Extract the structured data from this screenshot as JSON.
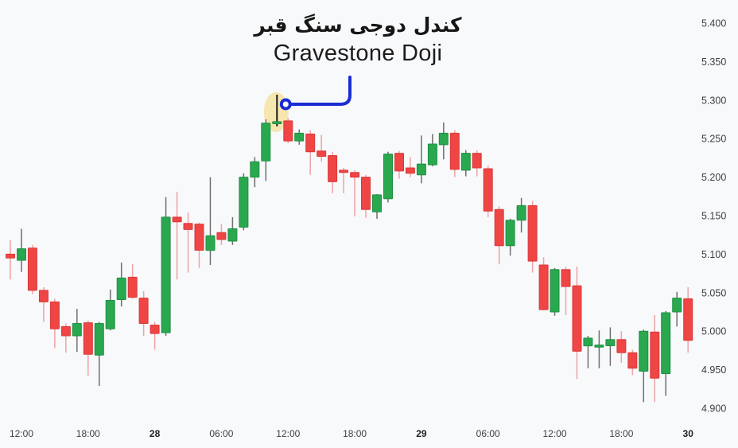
{
  "title": {
    "persian": "کندل دوجی سنگ قبر",
    "english": "Gravestone Doji"
  },
  "annotation": {
    "highlight_shape": "ellipse-highlight",
    "highlight_color": "#f5e3a6",
    "arrow_color": "#1c2cd4",
    "marker": "circle-ring"
  },
  "colors": {
    "background": "#f8f9fb",
    "up_body": "#2aa84f",
    "up_border": "#1f9041",
    "down_body": "#ef4545",
    "down_border": "#d93a3a",
    "up_wick": "#6e6e6e",
    "down_wick": "#eda3a3",
    "doji_wick": "#1a1a1a",
    "axis_text": "#3c4043",
    "axis_text_bold": "#1f1f1f"
  },
  "chart_data": {
    "type": "candlestick",
    "timeframe": "1h",
    "ylim": [
      4.9,
      5.4
    ],
    "grid": false,
    "y_axis_side": "right",
    "y_ticks": [
      "5.400",
      "5.350",
      "5.300",
      "5.250",
      "5.200",
      "5.150",
      "5.100",
      "5.050",
      "5.000",
      "4.950",
      "4.900"
    ],
    "x_ticks": [
      {
        "i": 1,
        "label": "12:00",
        "bold": false
      },
      {
        "i": 7,
        "label": "18:00",
        "bold": false
      },
      {
        "i": 13,
        "label": "28",
        "bold": true
      },
      {
        "i": 19,
        "label": "06:00",
        "bold": false
      },
      {
        "i": 25,
        "label": "12:00",
        "bold": false
      },
      {
        "i": 31,
        "label": "18:00",
        "bold": false
      },
      {
        "i": 37,
        "label": "29",
        "bold": true
      },
      {
        "i": 43,
        "label": "06:00",
        "bold": false
      },
      {
        "i": 49,
        "label": "12:00",
        "bold": false
      },
      {
        "i": 55,
        "label": "18:00",
        "bold": false
      },
      {
        "i": 61,
        "label": "30",
        "bold": true
      }
    ],
    "doji_index": 24,
    "candles_format": [
      "open",
      "high",
      "low",
      "close"
    ],
    "candles": [
      [
        5.1,
        5.118,
        5.067,
        5.095
      ],
      [
        5.092,
        5.133,
        5.077,
        5.107
      ],
      [
        5.108,
        5.112,
        5.048,
        5.053
      ],
      [
        5.053,
        5.057,
        5.012,
        5.038
      ],
      [
        5.038,
        5.042,
        4.978,
        5.003
      ],
      [
        5.006,
        5.01,
        4.972,
        4.994
      ],
      [
        4.994,
        5.029,
        4.973,
        5.01
      ],
      [
        5.011,
        5.014,
        4.942,
        4.97
      ],
      [
        4.969,
        5.012,
        4.929,
        5.01
      ],
      [
        5.003,
        5.054,
        5.001,
        5.04
      ],
      [
        5.041,
        5.089,
        5.032,
        5.069
      ],
      [
        5.07,
        5.087,
        5.042,
        5.044
      ],
      [
        5.043,
        5.052,
        4.994,
        5.01
      ],
      [
        5.008,
        5.012,
        4.976,
        4.997
      ],
      [
        4.998,
        5.174,
        4.994,
        5.148
      ],
      [
        5.148,
        5.181,
        5.067,
        5.142
      ],
      [
        5.14,
        5.154,
        5.076,
        5.132
      ],
      [
        5.139,
        5.141,
        5.082,
        5.105
      ],
      [
        5.105,
        5.2,
        5.086,
        5.124
      ],
      [
        5.128,
        5.139,
        5.112,
        5.119
      ],
      [
        5.117,
        5.148,
        5.112,
        5.133
      ],
      [
        5.135,
        5.205,
        5.131,
        5.2
      ],
      [
        5.2,
        5.226,
        5.187,
        5.22
      ],
      [
        5.221,
        5.275,
        5.195,
        5.27
      ],
      [
        5.27,
        5.307,
        5.266,
        5.272
      ],
      [
        5.273,
        5.277,
        5.244,
        5.247
      ],
      [
        5.247,
        5.262,
        5.242,
        5.257
      ],
      [
        5.256,
        5.261,
        5.203,
        5.233
      ],
      [
        5.234,
        5.255,
        5.22,
        5.227
      ],
      [
        5.228,
        5.233,
        5.179,
        5.194
      ],
      [
        5.209,
        5.212,
        5.179,
        5.206
      ],
      [
        5.206,
        5.209,
        5.149,
        5.2
      ],
      [
        5.2,
        5.203,
        5.147,
        5.158
      ],
      [
        5.155,
        5.178,
        5.146,
        5.177
      ],
      [
        5.172,
        5.233,
        5.167,
        5.23
      ],
      [
        5.231,
        5.234,
        5.198,
        5.208
      ],
      [
        5.212,
        5.226,
        5.2,
        5.205
      ],
      [
        5.203,
        5.254,
        5.192,
        5.217
      ],
      [
        5.216,
        5.256,
        5.214,
        5.243
      ],
      [
        5.242,
        5.271,
        5.223,
        5.257
      ],
      [
        5.257,
        5.261,
        5.2,
        5.21
      ],
      [
        5.209,
        5.235,
        5.201,
        5.231
      ],
      [
        5.231,
        5.235,
        5.201,
        5.212
      ],
      [
        5.211,
        5.215,
        5.148,
        5.156
      ],
      [
        5.158,
        5.162,
        5.087,
        5.111
      ],
      [
        5.111,
        5.146,
        5.098,
        5.144
      ],
      [
        5.144,
        5.173,
        5.128,
        5.163
      ],
      [
        5.163,
        5.169,
        5.076,
        5.091
      ],
      [
        5.086,
        5.096,
        5.027,
        5.028
      ],
      [
        5.025,
        5.082,
        5.02,
        5.08
      ],
      [
        5.08,
        5.084,
        5.021,
        5.058
      ],
      [
        5.059,
        5.084,
        4.938,
        4.974
      ],
      [
        4.981,
        4.994,
        4.952,
        4.991
      ],
      [
        4.98,
        5.001,
        4.952,
        4.982
      ],
      [
        4.981,
        5.005,
        4.955,
        4.989
      ],
      [
        4.989,
        5.0,
        4.959,
        4.972
      ],
      [
        4.972,
        4.976,
        4.943,
        4.952
      ],
      [
        4.948,
        5.002,
        4.908,
        5.0
      ],
      [
        4.999,
        5.021,
        4.908,
        4.939
      ],
      [
        4.945,
        5.026,
        4.916,
        5.024
      ],
      [
        5.025,
        5.051,
        5.006,
        5.043
      ],
      [
        5.042,
        5.057,
        4.972,
        4.988
      ]
    ]
  }
}
